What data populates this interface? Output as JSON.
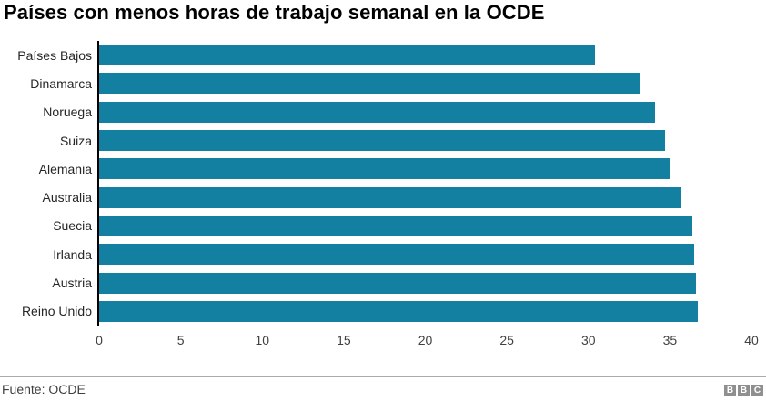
{
  "title": "Países con menos horas de trabajo semanal en la OCDE",
  "chart_data": {
    "type": "bar",
    "orientation": "horizontal",
    "title": "Países con menos horas de trabajo semanal en la OCDE",
    "categories": [
      "Países Bajos",
      "Dinamarca",
      "Noruega",
      "Suiza",
      "Alemania",
      "Australia",
      "Suecia",
      "Irlanda",
      "Austria",
      "Reino Unido"
    ],
    "values": [
      30.4,
      33.2,
      34.1,
      34.7,
      35.0,
      35.7,
      36.4,
      36.5,
      36.6,
      36.7
    ],
    "xlabel": "",
    "ylabel": "",
    "xlim": [
      0,
      40
    ],
    "x_ticks": [
      0,
      5,
      10,
      15,
      20,
      25,
      30,
      35,
      40
    ],
    "grid": false,
    "legend": "none",
    "bar_color": "#1380a1"
  },
  "footer": {
    "source": "Fuente: OCDE",
    "logo_blocks": [
      "B",
      "B",
      "C"
    ]
  }
}
